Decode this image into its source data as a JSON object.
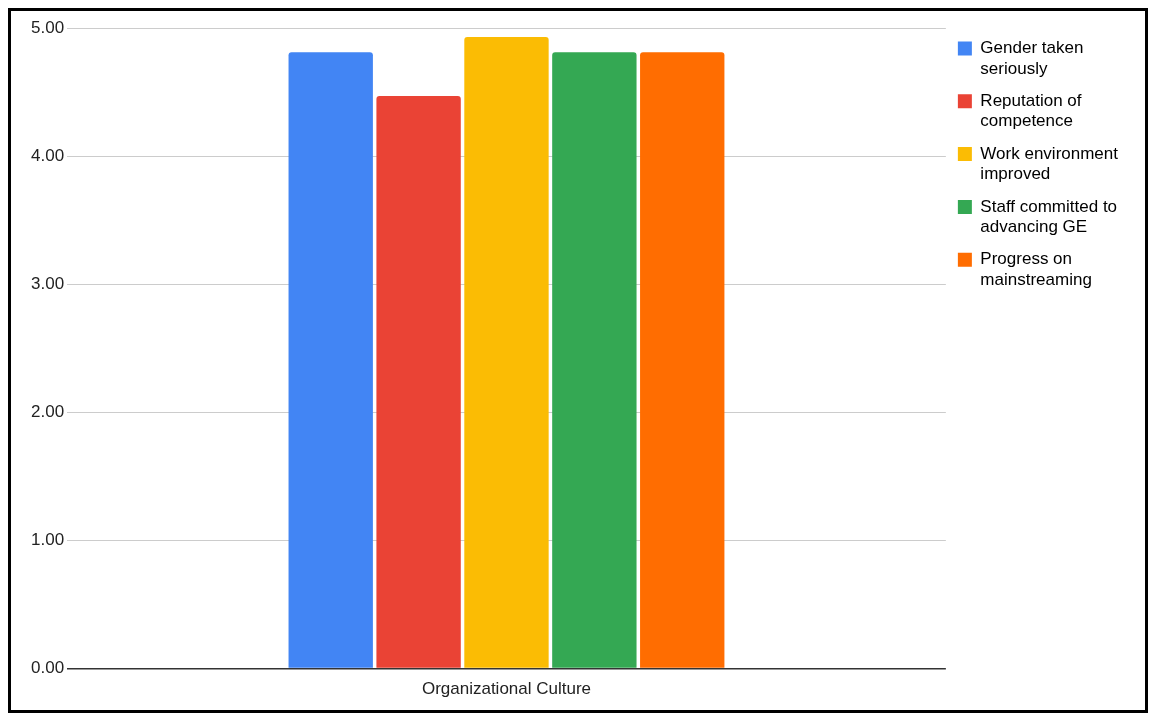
{
  "chart_data": {
    "type": "bar",
    "categories": [
      "Organizational Culture"
    ],
    "series": [
      {
        "name": "Gender taken seriously",
        "color": "#4285f4",
        "values": [
          4.81
        ]
      },
      {
        "name": "Reputation of competence",
        "color": "#ea4335",
        "values": [
          4.47
        ]
      },
      {
        "name": "Work environment improved",
        "color": "#fbbc04",
        "values": [
          4.93
        ]
      },
      {
        "name": "Staff committed to advancing GE",
        "color": "#34a853",
        "values": [
          4.81
        ]
      },
      {
        "name": "Progress on mainstreaming",
        "color": "#ff6d01",
        "values": [
          4.81
        ]
      }
    ],
    "ylim": [
      0,
      5
    ],
    "yticks": [
      {
        "value": 0,
        "label": "0.00"
      },
      {
        "value": 1,
        "label": "1.00"
      },
      {
        "value": 2,
        "label": "2.00"
      },
      {
        "value": 3,
        "label": "3.00"
      },
      {
        "value": 4,
        "label": "4.00"
      },
      {
        "value": 5,
        "label": "5.00"
      }
    ],
    "grid": "y",
    "legend": "top right"
  }
}
